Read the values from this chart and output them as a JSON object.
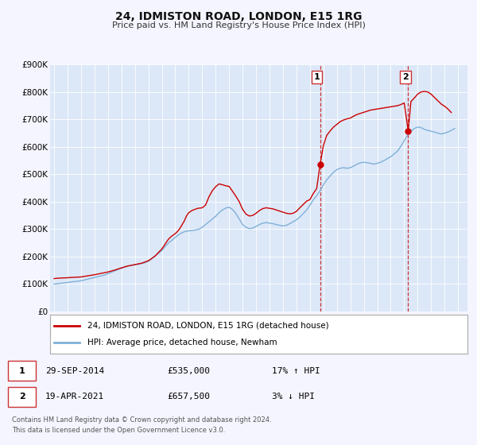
{
  "title": "24, IDMISTON ROAD, LONDON, E15 1RG",
  "subtitle": "Price paid vs. HM Land Registry's House Price Index (HPI)",
  "background_color": "#f5f5ff",
  "plot_bg_color": "#dce8f8",
  "ylim": [
    0,
    900000
  ],
  "yticks": [
    0,
    100000,
    200000,
    300000,
    400000,
    500000,
    600000,
    700000,
    800000,
    900000
  ],
  "ytick_labels": [
    "£0",
    "£100K",
    "£200K",
    "£300K",
    "£400K",
    "£500K",
    "£600K",
    "£700K",
    "£800K",
    "£900K"
  ],
  "xlim_start": 1994.7,
  "xlim_end": 2025.7,
  "xticks": [
    1995,
    1996,
    1997,
    1998,
    1999,
    2000,
    2001,
    2002,
    2003,
    2004,
    2005,
    2006,
    2007,
    2008,
    2009,
    2010,
    2011,
    2012,
    2013,
    2014,
    2015,
    2016,
    2017,
    2018,
    2019,
    2020,
    2021,
    2022,
    2023,
    2024,
    2025
  ],
  "hpi_color": "#7fb0d8",
  "price_color": "#cc0000",
  "marker_color": "#cc0000",
  "vline_color": "#cc3333",
  "label_price": "24, IDMISTON ROAD, LONDON, E15 1RG (detached house)",
  "label_hpi": "HPI: Average price, detached house, Newham",
  "purchase1_x": 2014.75,
  "purchase1_y": 535000,
  "purchase2_x": 2021.3,
  "purchase2_y": 657500,
  "ann1_x": 2014.5,
  "ann1_y": 855000,
  "ann2_x": 2021.1,
  "ann2_y": 855000,
  "table_row1": [
    "1",
    "29-SEP-2014",
    "£535,000",
    "17% ↑ HPI"
  ],
  "table_row2": [
    "2",
    "19-APR-2021",
    "£657,500",
    "3% ↓ HPI"
  ],
  "footer": "Contains HM Land Registry data © Crown copyright and database right 2024.\nThis data is licensed under the Open Government Licence v3.0.",
  "hpi_x": [
    1995.0,
    1995.08,
    1995.17,
    1995.25,
    1995.33,
    1995.42,
    1995.5,
    1995.58,
    1995.67,
    1995.75,
    1995.83,
    1995.92,
    1996.0,
    1996.08,
    1996.17,
    1996.25,
    1996.33,
    1996.42,
    1996.5,
    1996.58,
    1996.67,
    1996.75,
    1996.83,
    1996.92,
    1997.0,
    1997.08,
    1997.17,
    1997.25,
    1997.33,
    1997.42,
    1997.5,
    1997.58,
    1997.67,
    1997.75,
    1997.83,
    1997.92,
    1998.0,
    1998.25,
    1998.5,
    1998.75,
    1999.0,
    1999.25,
    1999.5,
    1999.75,
    2000.0,
    2000.25,
    2000.5,
    2000.75,
    2001.0,
    2001.25,
    2001.5,
    2001.75,
    2002.0,
    2002.25,
    2002.5,
    2002.75,
    2003.0,
    2003.25,
    2003.5,
    2003.75,
    2004.0,
    2004.25,
    2004.5,
    2004.75,
    2005.0,
    2005.25,
    2005.5,
    2005.75,
    2006.0,
    2006.25,
    2006.5,
    2006.75,
    2007.0,
    2007.25,
    2007.5,
    2007.75,
    2008.0,
    2008.25,
    2008.5,
    2008.75,
    2009.0,
    2009.25,
    2009.5,
    2009.75,
    2010.0,
    2010.25,
    2010.5,
    2010.75,
    2011.0,
    2011.25,
    2011.5,
    2011.75,
    2012.0,
    2012.25,
    2012.5,
    2012.75,
    2013.0,
    2013.25,
    2013.5,
    2013.75,
    2014.0,
    2014.25,
    2014.5,
    2014.75,
    2015.0,
    2015.25,
    2015.5,
    2015.75,
    2016.0,
    2016.25,
    2016.5,
    2016.75,
    2017.0,
    2017.25,
    2017.5,
    2017.75,
    2018.0,
    2018.25,
    2018.5,
    2018.75,
    2019.0,
    2019.25,
    2019.5,
    2019.75,
    2020.0,
    2020.25,
    2020.5,
    2020.75,
    2021.0,
    2021.25,
    2021.5,
    2021.75,
    2022.0,
    2022.25,
    2022.5,
    2022.75,
    2023.0,
    2023.25,
    2023.5,
    2023.75,
    2024.0,
    2024.25,
    2024.5,
    2024.75
  ],
  "hpi_y": [
    100000,
    100500,
    101000,
    101500,
    102000,
    102500,
    103000,
    103500,
    104000,
    104500,
    105000,
    105500,
    106000,
    106500,
    107000,
    107500,
    108000,
    108500,
    109000,
    109500,
    110000,
    110500,
    111000,
    111500,
    112000,
    113000,
    114000,
    115000,
    116000,
    117000,
    118000,
    119000,
    120000,
    121000,
    122000,
    123000,
    124000,
    127000,
    130000,
    133000,
    138000,
    143000,
    148000,
    153000,
    158000,
    163000,
    166000,
    168000,
    170000,
    172000,
    175000,
    178000,
    183000,
    192000,
    203000,
    212000,
    222000,
    237000,
    250000,
    260000,
    270000,
    280000,
    287000,
    292000,
    294000,
    295000,
    297000,
    300000,
    307000,
    317000,
    327000,
    337000,
    347000,
    360000,
    370000,
    377000,
    380000,
    372000,
    357000,
    337000,
    317000,
    307000,
    302000,
    304000,
    310000,
    317000,
    322000,
    324000,
    322000,
    320000,
    317000,
    314000,
    312000,
    314000,
    320000,
    327000,
    334000,
    344000,
    357000,
    370000,
    387000,
    407000,
    422000,
    440000,
    462000,
    480000,
    494000,
    507000,
    517000,
    522000,
    524000,
    522000,
    524000,
    530000,
    537000,
    542000,
    544000,
    542000,
    540000,
    537000,
    540000,
    544000,
    550000,
    557000,
    564000,
    574000,
    584000,
    602000,
    622000,
    642000,
    657000,
    667000,
    672000,
    670000,
    664000,
    660000,
    657000,
    654000,
    650000,
    647000,
    650000,
    654000,
    660000,
    667000
  ],
  "price_x": [
    1995.0,
    1995.17,
    1995.5,
    1995.75,
    1996.0,
    1996.25,
    1996.67,
    1997.0,
    1997.5,
    1998.0,
    1998.5,
    1999.0,
    1999.5,
    2000.0,
    2000.5,
    2001.0,
    2001.5,
    2002.0,
    2002.5,
    2003.0,
    2003.17,
    2003.33,
    2003.5,
    2003.67,
    2003.83,
    2004.0,
    2004.17,
    2004.33,
    2004.5,
    2004.67,
    2004.83,
    2005.0,
    2005.17,
    2005.33,
    2005.5,
    2005.67,
    2006.0,
    2006.25,
    2006.5,
    2006.75,
    2007.0,
    2007.25,
    2007.5,
    2007.75,
    2008.0,
    2008.25,
    2008.5,
    2008.75,
    2009.0,
    2009.25,
    2009.5,
    2009.75,
    2010.0,
    2010.25,
    2010.5,
    2010.75,
    2011.0,
    2011.25,
    2011.5,
    2011.75,
    2012.0,
    2012.25,
    2012.5,
    2012.75,
    2013.0,
    2013.25,
    2013.5,
    2013.75,
    2014.0,
    2014.25,
    2014.5,
    2014.75,
    2015.0,
    2015.25,
    2015.5,
    2015.75,
    2016.0,
    2016.25,
    2016.5,
    2016.75,
    2017.0,
    2017.25,
    2017.5,
    2017.75,
    2018.0,
    2018.25,
    2018.5,
    2018.75,
    2019.0,
    2019.25,
    2019.5,
    2019.75,
    2020.0,
    2020.25,
    2020.5,
    2020.75,
    2021.0,
    2021.3,
    2021.5,
    2021.75,
    2022.0,
    2022.25,
    2022.5,
    2022.75,
    2023.0,
    2023.25,
    2023.5,
    2023.75,
    2024.0,
    2024.25,
    2024.5
  ],
  "price_y": [
    120000,
    121000,
    122000,
    122500,
    123000,
    124000,
    125000,
    126000,
    130000,
    134000,
    139000,
    144000,
    151000,
    159000,
    166000,
    171000,
    176000,
    185000,
    202000,
    228000,
    240000,
    252000,
    264000,
    272000,
    278000,
    284000,
    292000,
    302000,
    316000,
    330000,
    348000,
    360000,
    366000,
    370000,
    373000,
    376000,
    378000,
    388000,
    418000,
    440000,
    455000,
    465000,
    462000,
    458000,
    456000,
    438000,
    420000,
    400000,
    372000,
    355000,
    348000,
    350000,
    358000,
    368000,
    375000,
    378000,
    376000,
    374000,
    370000,
    366000,
    362000,
    358000,
    356000,
    358000,
    365000,
    378000,
    390000,
    402000,
    408000,
    430000,
    448000,
    535000,
    605000,
    642000,
    658000,
    672000,
    682000,
    692000,
    698000,
    702000,
    705000,
    712000,
    718000,
    722000,
    726000,
    730000,
    734000,
    736000,
    738000,
    740000,
    742000,
    744000,
    746000,
    748000,
    750000,
    754000,
    760000,
    657500,
    765000,
    778000,
    792000,
    800000,
    802000,
    800000,
    792000,
    780000,
    768000,
    756000,
    748000,
    738000,
    725000
  ]
}
